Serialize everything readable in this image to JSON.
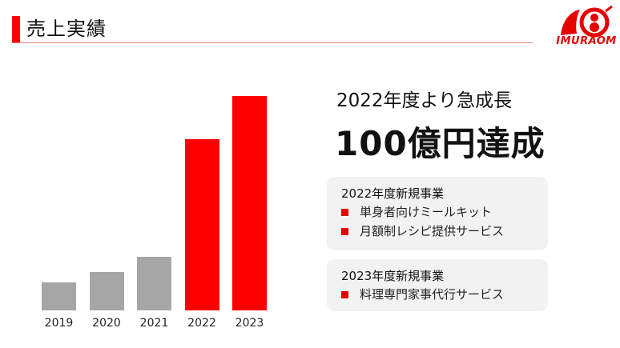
{
  "header": {
    "title": "売上実績",
    "logo_text": "IMURAOM",
    "accent_color": "#ff0000"
  },
  "chart_data": {
    "type": "bar",
    "title": "売上実績",
    "categories": [
      "2019",
      "2020",
      "2021",
      "2022",
      "2023"
    ],
    "values": [
      13,
      18,
      25,
      80,
      100
    ],
    "colors": [
      "#a6a6a6",
      "#a6a6a6",
      "#a6a6a6",
      "#ff0000",
      "#ff0000"
    ],
    "xlabel": "",
    "ylabel": "",
    "units": "億円 (approx., relative to 100億円 in 2023)",
    "grid": false,
    "legend": "none"
  },
  "highlight": {
    "headline": "2022年度より急成長",
    "big_text": "100億円達成"
  },
  "boxes": [
    {
      "heading": "2022年度新規事業",
      "items": [
        "単身者向けミールキット",
        "月額制レシピ提供サービス"
      ]
    },
    {
      "heading": "2023年度新規事業",
      "items": [
        "料理専門家事代行サービス"
      ]
    }
  ]
}
